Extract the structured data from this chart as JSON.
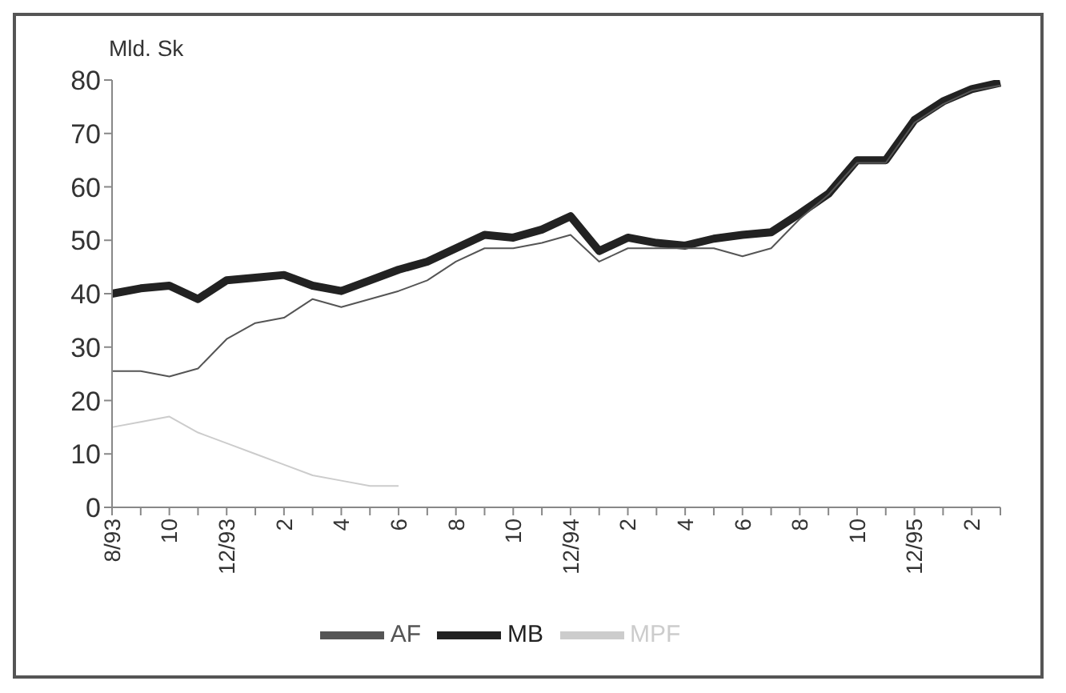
{
  "chart_data": {
    "type": "line",
    "ylabel": "Mld. Sk",
    "categories": [
      "8/93",
      null,
      "10",
      null,
      "12/93",
      null,
      "2",
      null,
      "4",
      null,
      "6",
      null,
      "8",
      null,
      "10",
      null,
      "12/94",
      null,
      "2",
      null,
      "4",
      null,
      "6",
      null,
      "8",
      null,
      "10",
      null,
      "12/95",
      null,
      "2",
      null
    ],
    "series": [
      {
        "name": "MB",
        "color": "#222222",
        "values": [
          40,
          41,
          41.5,
          39,
          42.5,
          43,
          43.5,
          41.5,
          40.5,
          42.5,
          44.5,
          46,
          48.5,
          51,
          50.5,
          52,
          54.5,
          48,
          50.5,
          49.5,
          49,
          50.3,
          51,
          51.5,
          55,
          58.7,
          65,
          65,
          72.5,
          76,
          78.3,
          79.5
        ]
      },
      {
        "name": "AF",
        "color": "#555555",
        "values": [
          25.5,
          25.5,
          24.5,
          26,
          31.5,
          34.5,
          35.5,
          39,
          37.5,
          39,
          40.5,
          42.5,
          46,
          48.5,
          48.5,
          49.5,
          51,
          46,
          48.5,
          48.5,
          48.5,
          48.5,
          47,
          48.5,
          54,
          58.5,
          64.5,
          64.5,
          72,
          75.5,
          78,
          79
        ]
      },
      {
        "name": "MPF",
        "color": "#cccccc",
        "values": [
          15,
          16,
          17,
          14,
          12,
          10,
          8,
          6,
          5,
          4,
          4,
          null,
          null,
          null,
          null,
          null,
          null,
          null,
          null,
          null,
          null,
          null,
          null,
          null,
          null,
          null,
          null,
          null,
          null,
          null,
          null,
          null
        ]
      }
    ],
    "ylim": [
      0,
      80
    ],
    "yticks": [
      0,
      10,
      20,
      30,
      40,
      50,
      60,
      70,
      80
    ],
    "grid": false,
    "legend": "bottom",
    "marker": "none",
    "line_style": "solid"
  }
}
